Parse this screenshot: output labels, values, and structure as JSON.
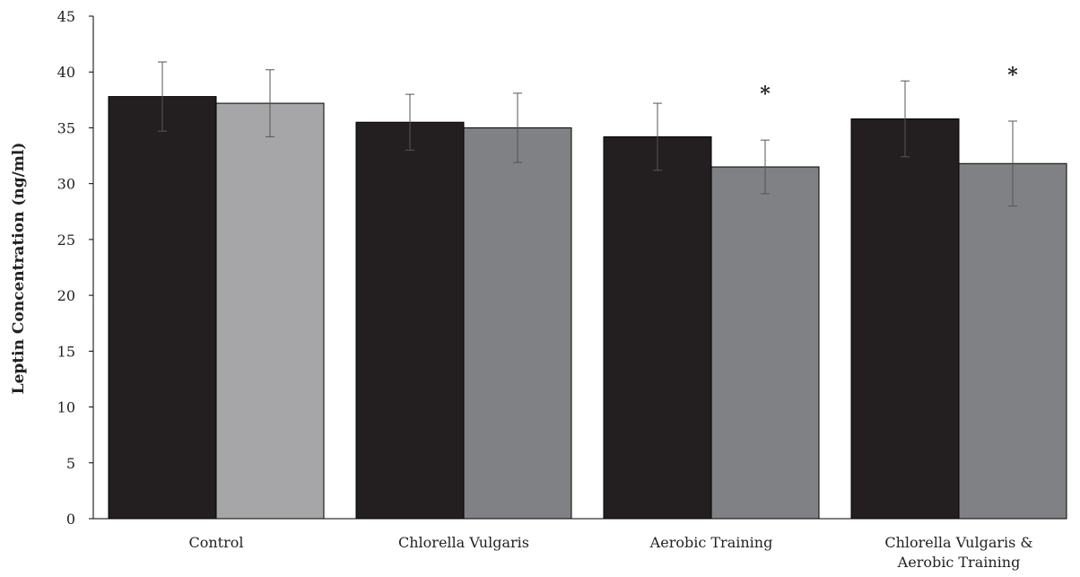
{
  "chart_data": {
    "type": "bar",
    "title": "",
    "xlabel": "",
    "ylabel": "Leptin Concentration (ng/ml)",
    "ylim": [
      0,
      45
    ],
    "yticks": [
      0,
      5,
      10,
      15,
      20,
      25,
      30,
      35,
      40,
      45
    ],
    "grid": false,
    "legend": "none",
    "categories": [
      [
        "Control"
      ],
      [
        "Chlorella Vulgaris"
      ],
      [
        "Aerobic Training"
      ],
      [
        "Chlorella Vulgaris &",
        "Aerobic Training"
      ]
    ],
    "series": [
      {
        "values": [
          37.8,
          35.5,
          34.2,
          35.8
        ],
        "errors": [
          3.1,
          2.5,
          3.0,
          3.4
        ]
      },
      {
        "values": [
          37.2,
          35.0,
          31.5,
          31.8
        ],
        "errors": [
          3.0,
          3.1,
          2.4,
          3.8
        ]
      }
    ],
    "series_colors": [
      [
        "#231f20",
        "#231f20",
        "#231f20",
        "#231f20"
      ],
      [
        "#a6a6a9",
        "#808184",
        "#808184",
        "#808184"
      ]
    ],
    "annotations": [
      {
        "category_index": 2,
        "series_index": 1,
        "text": "*"
      },
      {
        "category_index": 3,
        "series_index": 1,
        "text": "*"
      }
    ]
  }
}
